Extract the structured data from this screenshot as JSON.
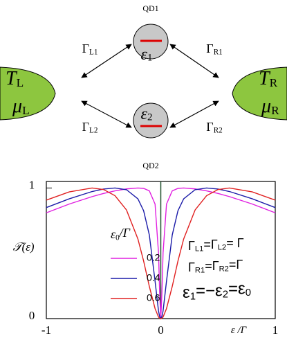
{
  "diagram": {
    "dots": [
      {
        "label": "QD1",
        "level": [
          "ε",
          {
            "sub": "1"
          }
        ]
      },
      {
        "label": "QD2",
        "level": [
          "ε",
          {
            "sub": "2"
          }
        ]
      }
    ],
    "couplings": [
      [
        "Γ",
        {
          "sub": "L1"
        }
      ],
      [
        "Γ",
        {
          "sub": "R1"
        }
      ],
      [
        "Γ",
        {
          "sub": "L2"
        }
      ],
      [
        "Γ",
        {
          "sub": "R2"
        }
      ]
    ],
    "leads": [
      {
        "temperature": [
          "T",
          {
            "sub": "L"
          }
        ],
        "potential": [
          "μ",
          {
            "sub": "L"
          }
        ]
      },
      {
        "temperature": [
          "T",
          {
            "sub": "R"
          }
        ],
        "potential": [
          "μ",
          {
            "sub": "R"
          }
        ]
      }
    ]
  },
  "chart_data": {
    "type": "line",
    "x_label": [
      "ε /Γ"
    ],
    "y_label": "𝒯(ε)",
    "legend_title": [
      "ε",
      {
        "sub": "0"
      },
      "/Γ"
    ],
    "x": [
      -1,
      -0.8,
      -0.6,
      -0.5,
      -0.4,
      -0.3,
      -0.2,
      -0.15,
      -0.1,
      -0.05,
      -0.02,
      -0.01,
      0,
      0.01,
      0.02,
      0.05,
      0.1,
      0.15,
      0.2,
      0.3,
      0.4,
      0.5,
      0.6,
      0.8,
      1
    ],
    "series": [
      {
        "name": "0.2",
        "color": "#e020e0",
        "values": [
          0.81,
          0.877,
          0.934,
          0.958,
          0.978,
          0.993,
          1,
          0.997,
          0.978,
          0.877,
          0.505,
          0.201,
          0,
          0.201,
          0.505,
          0.877,
          0.978,
          0.997,
          1,
          0.993,
          0.978,
          0.958,
          0.934,
          0.877,
          0.81
        ]
      },
      {
        "name": "0.4",
        "color": "#1a1aa8",
        "values": [
          0.85,
          0.917,
          0.973,
          0.992,
          1,
          0.987,
          0.917,
          0.826,
          0.64,
          0.287,
          0.059,
          0.015,
          0,
          0.015,
          0.059,
          0.287,
          0.64,
          0.826,
          0.917,
          0.987,
          1,
          0.992,
          0.973,
          0.917,
          0.85
        ]
      },
      {
        "name": "0.6",
        "color": "#e02020",
        "values": [
          0.907,
          0.97,
          1,
          0.988,
          0.941,
          0.832,
          0.61,
          0.441,
          0.246,
          0.077,
          0.012,
          0.003,
          0,
          0.003,
          0.012,
          0.077,
          0.246,
          0.441,
          0.61,
          0.832,
          0.941,
          0.988,
          1,
          0.97,
          0.907
        ]
      }
    ],
    "xlim": [
      -1,
      1
    ],
    "ylim": [
      0,
      1.05
    ],
    "xticks": [
      -1,
      0,
      1
    ],
    "yticks": [
      0,
      1
    ],
    "annotations": [
      [
        "Γ",
        {
          "sub": "L1"
        },
        "=Γ",
        {
          "sub": "L2"
        },
        "= Γ"
      ],
      [
        "Γ",
        {
          "sub": "R1"
        },
        "=Γ",
        {
          "sub": "R2"
        },
        "=Γ"
      ],
      [
        "ε",
        {
          "sub": "1"
        },
        "=−ε",
        {
          "sub": "2"
        },
        "=ε",
        {
          "sub": "0"
        }
      ]
    ]
  }
}
